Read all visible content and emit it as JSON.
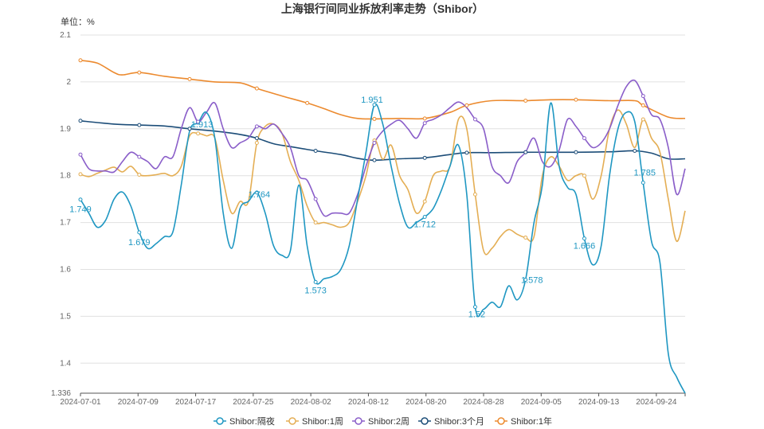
{
  "chart_data": {
    "type": "line",
    "title": "上海银行间同业拆放利率走势（Shibor）",
    "unit_label": "单位：%",
    "xlabel": "",
    "ylabel": "",
    "ylim": [
      1.336,
      2.1
    ],
    "y_ticks": [
      "1.336",
      "1.4",
      "1.5",
      "1.6",
      "1.7",
      "1.8",
      "1.9",
      "2",
      "2.1"
    ],
    "x_ticks": [
      "2024-07-01",
      "2024-07-09",
      "2024-07-17",
      "2024-07-25",
      "2024-08-02",
      "2024-08-12",
      "2024-08-20",
      "2024-08-28",
      "2024-09-05",
      "2024-09-13",
      "2024-09-24"
    ],
    "grid": true,
    "legend_position": "bottom",
    "series": [
      {
        "name": "Shibor:隔夜",
        "color": "#1f97c2",
        "values": [
          [
            0,
            1.749
          ],
          [
            1,
            1.72
          ],
          [
            2,
            1.69
          ],
          [
            3,
            1.705
          ],
          [
            4,
            1.75
          ],
          [
            5,
            1.765
          ],
          [
            6,
            1.735
          ],
          [
            7,
            1.679
          ],
          [
            8,
            1.645
          ],
          [
            9,
            1.655
          ],
          [
            10,
            1.67
          ],
          [
            11,
            1.68
          ],
          [
            12,
            1.78
          ],
          [
            13,
            1.895
          ],
          [
            14,
            1.913
          ],
          [
            15,
            1.935
          ],
          [
            16,
            1.88
          ],
          [
            17,
            1.72
          ],
          [
            18,
            1.645
          ],
          [
            19,
            1.73
          ],
          [
            20,
            1.745
          ],
          [
            21,
            1.764
          ],
          [
            22,
            1.72
          ],
          [
            23,
            1.65
          ],
          [
            24,
            1.63
          ],
          [
            25,
            1.64
          ],
          [
            26,
            1.78
          ],
          [
            27,
            1.65
          ],
          [
            28,
            1.573
          ],
          [
            29,
            1.58
          ],
          [
            30,
            1.585
          ],
          [
            31,
            1.6
          ],
          [
            32,
            1.65
          ],
          [
            33,
            1.75
          ],
          [
            34,
            1.85
          ],
          [
            35,
            1.951
          ],
          [
            36,
            1.91
          ],
          [
            37,
            1.82
          ],
          [
            38,
            1.74
          ],
          [
            39,
            1.69
          ],
          [
            40,
            1.7
          ],
          [
            41,
            1.712
          ],
          [
            42,
            1.73
          ],
          [
            43,
            1.77
          ],
          [
            44,
            1.82
          ],
          [
            45,
            1.865
          ],
          [
            46,
            1.76
          ],
          [
            47,
            1.52
          ],
          [
            48,
            1.515
          ],
          [
            49,
            1.53
          ],
          [
            50,
            1.52
          ],
          [
            51,
            1.565
          ],
          [
            52,
            1.535
          ],
          [
            53,
            1.578
          ],
          [
            54,
            1.7
          ],
          [
            55,
            1.78
          ],
          [
            56,
            1.955
          ],
          [
            57,
            1.82
          ],
          [
            58,
            1.775
          ],
          [
            59,
            1.76
          ],
          [
            60,
            1.666
          ],
          [
            61,
            1.61
          ],
          [
            62,
            1.65
          ],
          [
            63,
            1.8
          ],
          [
            64,
            1.9
          ],
          [
            65,
            1.935
          ],
          [
            66,
            1.915
          ],
          [
            67,
            1.785
          ],
          [
            68,
            1.66
          ],
          [
            69,
            1.615
          ],
          [
            70,
            1.42
          ],
          [
            71,
            1.37
          ],
          [
            72,
            1.336
          ]
        ]
      },
      {
        "name": "Shibor:1周",
        "color": "#e4ae54",
        "values": [
          [
            0,
            1.803
          ],
          [
            1,
            1.798
          ],
          [
            2,
            1.805
          ],
          [
            3,
            1.812
          ],
          [
            4,
            1.818
          ],
          [
            5,
            1.808
          ],
          [
            6,
            1.82
          ],
          [
            7,
            1.802
          ],
          [
            8,
            1.8
          ],
          [
            9,
            1.802
          ],
          [
            10,
            1.805
          ],
          [
            11,
            1.8
          ],
          [
            12,
            1.82
          ],
          [
            13,
            1.885
          ],
          [
            14,
            1.89
          ],
          [
            15,
            1.885
          ],
          [
            16,
            1.88
          ],
          [
            17,
            1.79
          ],
          [
            18,
            1.72
          ],
          [
            19,
            1.745
          ],
          [
            20,
            1.745
          ],
          [
            21,
            1.87
          ],
          [
            22,
            1.905
          ],
          [
            23,
            1.91
          ],
          [
            24,
            1.89
          ],
          [
            25,
            1.83
          ],
          [
            26,
            1.79
          ],
          [
            27,
            1.735
          ],
          [
            28,
            1.7
          ],
          [
            29,
            1.7
          ],
          [
            30,
            1.695
          ],
          [
            31,
            1.69
          ],
          [
            32,
            1.7
          ],
          [
            33,
            1.745
          ],
          [
            34,
            1.8
          ],
          [
            35,
            1.875
          ],
          [
            36,
            1.835
          ],
          [
            37,
            1.865
          ],
          [
            38,
            1.8
          ],
          [
            39,
            1.77
          ],
          [
            40,
            1.72
          ],
          [
            41,
            1.745
          ],
          [
            42,
            1.8
          ],
          [
            43,
            1.81
          ],
          [
            44,
            1.82
          ],
          [
            45,
            1.92
          ],
          [
            46,
            1.9
          ],
          [
            47,
            1.76
          ],
          [
            48,
            1.64
          ],
          [
            49,
            1.645
          ],
          [
            50,
            1.67
          ],
          [
            51,
            1.685
          ],
          [
            52,
            1.675
          ],
          [
            53,
            1.668
          ],
          [
            54,
            1.67
          ],
          [
            55,
            1.8
          ],
          [
            56,
            1.84
          ],
          [
            57,
            1.82
          ],
          [
            58,
            1.79
          ],
          [
            59,
            1.8
          ],
          [
            60,
            1.8
          ],
          [
            61,
            1.75
          ],
          [
            62,
            1.8
          ],
          [
            63,
            1.9
          ],
          [
            64,
            1.94
          ],
          [
            65,
            1.91
          ],
          [
            66,
            1.86
          ],
          [
            67,
            1.92
          ],
          [
            68,
            1.88
          ],
          [
            69,
            1.85
          ],
          [
            70,
            1.75
          ],
          [
            71,
            1.66
          ],
          [
            72,
            1.725
          ]
        ]
      },
      {
        "name": "Shibor:2周",
        "color": "#8a5ec9",
        "values": [
          [
            0,
            1.845
          ],
          [
            1,
            1.815
          ],
          [
            2,
            1.81
          ],
          [
            3,
            1.81
          ],
          [
            4,
            1.808
          ],
          [
            5,
            1.83
          ],
          [
            6,
            1.85
          ],
          [
            7,
            1.84
          ],
          [
            8,
            1.83
          ],
          [
            9,
            1.815
          ],
          [
            10,
            1.84
          ],
          [
            11,
            1.84
          ],
          [
            12,
            1.9
          ],
          [
            13,
            1.945
          ],
          [
            14,
            1.915
          ],
          [
            15,
            1.935
          ],
          [
            16,
            1.955
          ],
          [
            17,
            1.9
          ],
          [
            18,
            1.86
          ],
          [
            19,
            1.87
          ],
          [
            20,
            1.88
          ],
          [
            21,
            1.905
          ],
          [
            22,
            1.9
          ],
          [
            23,
            1.91
          ],
          [
            24,
            1.89
          ],
          [
            25,
            1.86
          ],
          [
            26,
            1.8
          ],
          [
            27,
            1.79
          ],
          [
            28,
            1.75
          ],
          [
            29,
            1.715
          ],
          [
            30,
            1.72
          ],
          [
            31,
            1.72
          ],
          [
            32,
            1.72
          ],
          [
            33,
            1.76
          ],
          [
            34,
            1.82
          ],
          [
            35,
            1.87
          ],
          [
            36,
            1.895
          ],
          [
            37,
            1.91
          ],
          [
            38,
            1.918
          ],
          [
            39,
            1.9
          ],
          [
            40,
            1.88
          ],
          [
            41,
            1.912
          ],
          [
            42,
            1.92
          ],
          [
            43,
            1.93
          ],
          [
            44,
            1.945
          ],
          [
            45,
            1.957
          ],
          [
            46,
            1.945
          ],
          [
            47,
            1.92
          ],
          [
            48,
            1.9
          ],
          [
            49,
            1.82
          ],
          [
            50,
            1.8
          ],
          [
            51,
            1.785
          ],
          [
            52,
            1.83
          ],
          [
            53,
            1.85
          ],
          [
            54,
            1.88
          ],
          [
            55,
            1.83
          ],
          [
            56,
            1.82
          ],
          [
            57,
            1.855
          ],
          [
            58,
            1.92
          ],
          [
            59,
            1.905
          ],
          [
            60,
            1.88
          ],
          [
            61,
            1.86
          ],
          [
            62,
            1.87
          ],
          [
            63,
            1.9
          ],
          [
            64,
            1.95
          ],
          [
            65,
            1.99
          ],
          [
            66,
            2.003
          ],
          [
            67,
            1.97
          ],
          [
            68,
            1.93
          ],
          [
            69,
            1.92
          ],
          [
            70,
            1.86
          ],
          [
            71,
            1.76
          ],
          [
            72,
            1.815
          ]
        ]
      },
      {
        "name": "Shibor:3个月",
        "color": "#1c4d78",
        "values": [
          [
            0,
            1.917
          ],
          [
            4,
            1.91
          ],
          [
            7,
            1.908
          ],
          [
            10,
            1.906
          ],
          [
            13,
            1.9
          ],
          [
            16,
            1.895
          ],
          [
            19,
            1.888
          ],
          [
            21,
            1.88
          ],
          [
            23,
            1.868
          ],
          [
            25,
            1.862
          ],
          [
            28,
            1.853
          ],
          [
            31,
            1.845
          ],
          [
            33,
            1.837
          ],
          [
            35,
            1.833
          ],
          [
            38,
            1.836
          ],
          [
            41,
            1.838
          ],
          [
            44,
            1.845
          ],
          [
            46,
            1.849
          ],
          [
            49,
            1.849
          ],
          [
            53,
            1.85
          ],
          [
            56,
            1.85
          ],
          [
            59,
            1.85
          ],
          [
            63,
            1.851
          ],
          [
            66,
            1.853
          ],
          [
            68,
            1.848
          ],
          [
            70,
            1.836
          ],
          [
            72,
            1.836
          ]
        ]
      },
      {
        "name": "Shibor:1年",
        "color": "#ec8a2e",
        "values": [
          [
            0,
            2.046
          ],
          [
            2,
            2.04
          ],
          [
            4,
            2.02
          ],
          [
            5,
            2.015
          ],
          [
            7,
            2.02
          ],
          [
            10,
            2.012
          ],
          [
            13,
            2.006
          ],
          [
            16,
            2.0
          ],
          [
            19,
            1.998
          ],
          [
            21,
            1.986
          ],
          [
            24,
            1.97
          ],
          [
            27,
            1.955
          ],
          [
            29,
            1.943
          ],
          [
            31,
            1.93
          ],
          [
            33,
            1.922
          ],
          [
            35,
            1.921
          ],
          [
            38,
            1.922
          ],
          [
            41,
            1.922
          ],
          [
            44,
            1.935
          ],
          [
            46,
            1.95
          ],
          [
            49,
            1.96
          ],
          [
            53,
            1.96
          ],
          [
            56,
            1.962
          ],
          [
            59,
            1.962
          ],
          [
            63,
            1.96
          ],
          [
            66,
            1.96
          ],
          [
            67,
            1.95
          ],
          [
            70,
            1.925
          ],
          [
            72,
            1.922
          ]
        ]
      }
    ],
    "annotations": [
      {
        "series": 0,
        "x": 0,
        "y": 1.749,
        "label": "1.749"
      },
      {
        "series": 0,
        "x": 7,
        "y": 1.679,
        "label": "1.679"
      },
      {
        "series": 0,
        "x": 14,
        "y": 1.913,
        "label": "1.913"
      },
      {
        "series": 0,
        "x": 21,
        "y": 1.764,
        "label": "1.764"
      },
      {
        "series": 0,
        "x": 28,
        "y": 1.573,
        "label": "1.573"
      },
      {
        "series": 0,
        "x": 35,
        "y": 1.951,
        "label": "1.951"
      },
      {
        "series": 0,
        "x": 41,
        "y": 1.712,
        "label": "1.712"
      },
      {
        "series": 0,
        "x": 47,
        "y": 1.52,
        "label": "1.52"
      },
      {
        "series": 0,
        "x": 53,
        "y": 1.578,
        "label": "1.578"
      },
      {
        "series": 0,
        "x": 60,
        "y": 1.666,
        "label": "1.666"
      },
      {
        "series": 0,
        "x": 67,
        "y": 1.785,
        "label": "1.785"
      }
    ]
  }
}
